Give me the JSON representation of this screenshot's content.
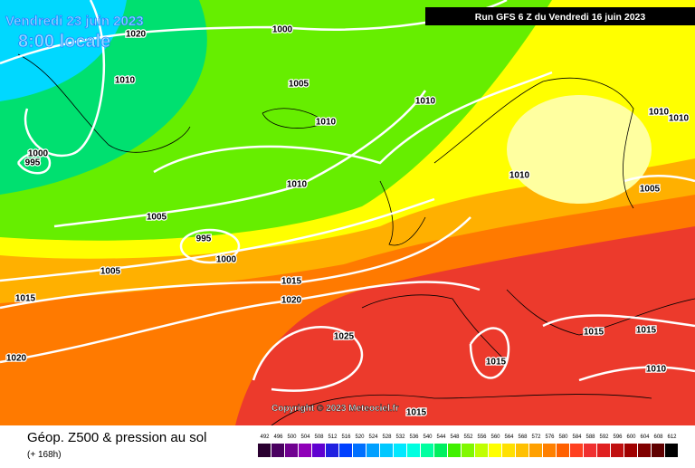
{
  "header": {
    "date": "Vendredi 23 juin 2023",
    "time": "8:00 locale",
    "run": "Run GFS 6 Z du Vendredi 16 juin 2023"
  },
  "footer": {
    "title": "Géop. Z500 & pression au sol",
    "lead": "(+ 168h)",
    "copyright": "Copyright © 2023 Meteociel.fr"
  },
  "isobar_labels": [
    "1020",
    "1000",
    "1010",
    "1005",
    "1010",
    "1010",
    "1010",
    "1010",
    "1000",
    "995",
    "1010",
    "1005",
    "995",
    "1000",
    "1010",
    "1005",
    "1005",
    "1015",
    "1015",
    "1020",
    "1025",
    "1020",
    "1015",
    "1015",
    "1015",
    "1010",
    "1015"
  ],
  "colorbar": {
    "values": [
      492,
      496,
      500,
      504,
      508,
      512,
      516,
      520,
      524,
      528,
      532,
      536,
      540,
      544,
      548,
      552,
      556,
      560,
      564,
      568,
      572,
      576,
      580,
      584,
      588,
      592,
      596,
      600,
      604,
      608,
      612
    ],
    "colors": [
      "#2a0030",
      "#4a0060",
      "#700090",
      "#9000b8",
      "#6000d0",
      "#2020e0",
      "#0040ff",
      "#0070ff",
      "#00a0ff",
      "#00c8ff",
      "#00e8ff",
      "#00ffe0",
      "#00ffa0",
      "#00f060",
      "#40f000",
      "#80f800",
      "#c0ff00",
      "#ffff00",
      "#ffe000",
      "#ffc000",
      "#ffa000",
      "#ff8000",
      "#ff6000",
      "#ff4020",
      "#f03030",
      "#e02020",
      "#c01010",
      "#a00000",
      "#800000",
      "#600000",
      "#000000"
    ]
  }
}
